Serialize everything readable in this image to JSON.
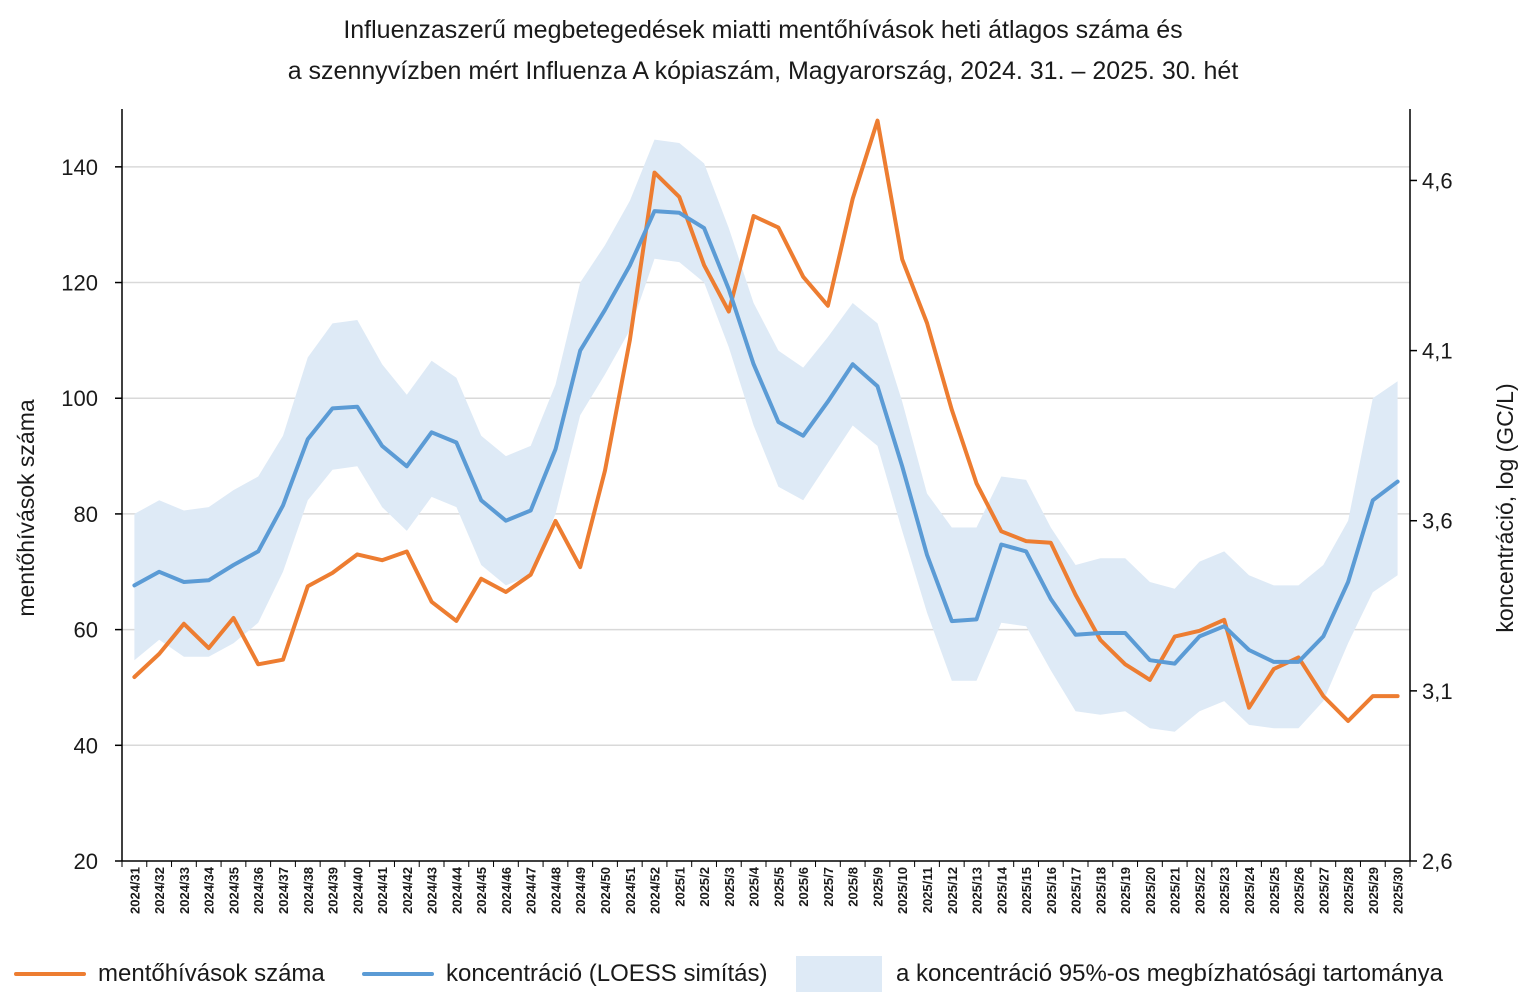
{
  "title": {
    "line1": "Influenzaszerű megbetegedések miatti mentőhívások heti átlagos száma és",
    "line2": "a szennyvízben mért Influenza A kópiaszám, Magyarország, 2024. 31. – 2025. 30. hét"
  },
  "legend": {
    "calls": "mentőhívások száma",
    "loess": "koncentráció (LOESS simítás)",
    "band": "a koncentráció 95%-os megbízhatósági tartománya"
  },
  "colors": {
    "calls": "#ED7D31",
    "loess": "#5B9BD5",
    "band": "#DEEAF6",
    "grid": "#D9D9D9",
    "axis": "#000000"
  },
  "chart_data": {
    "type": "line",
    "title": "Influenzaszerű megbetegedések miatti mentőhívások heti átlagos száma és a szennyvízben mért Influenza A kópiaszám, Magyarország, 2024. 31. – 2025. 30. hét",
    "ylabel": "mentőhívások száma",
    "y2label": "koncentráció, log (GC/L)",
    "ylim": [
      20,
      150
    ],
    "yticks": [
      20,
      40,
      60,
      80,
      100,
      120,
      140
    ],
    "y2lim": [
      2.6,
      4.81
    ],
    "y2ticks": [
      2.6,
      3.1,
      3.6,
      4.1,
      4.6
    ],
    "y2ticklabels": [
      "2,6",
      "3,1",
      "3,6",
      "4,1",
      "4,6"
    ],
    "grid": true,
    "legend_position": "bottom",
    "categories": [
      "2024/31",
      "2024/32",
      "2024/33",
      "2024/34",
      "2024/35",
      "2024/36",
      "2024/37",
      "2024/38",
      "2024/39",
      "2024/40",
      "2024/41",
      "2024/42",
      "2024/43",
      "2024/44",
      "2024/45",
      "2024/46",
      "2024/47",
      "2024/48",
      "2024/49",
      "2024/50",
      "2024/51",
      "2024/52",
      "2025/1",
      "2025/2",
      "2025/3",
      "2025/4",
      "2025/5",
      "2025/6",
      "2025/7",
      "2025/8",
      "2025/9",
      "2025/10",
      "2025/11",
      "2025/12",
      "2025/13",
      "2025/14",
      "2025/15",
      "2025/16",
      "2025/17",
      "2025/18",
      "2025/19",
      "2025/20",
      "2025/21",
      "2025/22",
      "2025/23",
      "2025/24",
      "2025/25",
      "2025/26",
      "2025/27",
      "2025/28",
      "2025/29",
      "2025/30"
    ],
    "series": [
      {
        "name": "mentőhívások száma",
        "axis": "left",
        "values": [
          51.8,
          55.8,
          61.0,
          56.8,
          62.0,
          54.0,
          54.8,
          67.5,
          69.8,
          73.0,
          72.0,
          73.5,
          64.8,
          61.5,
          68.8,
          66.5,
          69.5,
          78.8,
          70.8,
          87.5,
          110.0,
          139.0,
          134.8,
          123.0,
          115.0,
          131.5,
          129.5,
          121.0,
          116.0,
          134.5,
          148.0,
          124.0,
          113.0,
          98.0,
          85.3,
          77.0,
          75.3,
          75.0,
          66.0,
          58.2,
          54.0,
          51.3,
          58.8,
          59.8,
          61.7,
          46.5,
          53.2,
          55.2,
          48.5,
          44.2,
          48.5,
          48.5
        ]
      },
      {
        "name": "koncentráció (LOESS simítás)",
        "axis": "right",
        "values": [
          3.41,
          3.45,
          3.42,
          3.425,
          3.47,
          3.51,
          3.645,
          3.84,
          3.93,
          3.935,
          3.82,
          3.76,
          3.86,
          3.83,
          3.66,
          3.6,
          3.63,
          3.81,
          4.1,
          4.22,
          4.35,
          4.51,
          4.505,
          4.46,
          4.28,
          4.06,
          3.89,
          3.85,
          3.95,
          4.06,
          3.995,
          3.76,
          3.5,
          3.305,
          3.31,
          3.53,
          3.51,
          3.37,
          3.265,
          3.27,
          3.27,
          3.19,
          3.18,
          3.26,
          3.29,
          3.22,
          3.185,
          3.185,
          3.26,
          3.42,
          3.66,
          3.715
        ]
      },
      {
        "name": "a koncentráció 95%-os megbízhatósági tartománya",
        "axis": "right",
        "type": "band",
        "lower": [
          3.19,
          3.25,
          3.2,
          3.2,
          3.24,
          3.3,
          3.45,
          3.66,
          3.75,
          3.76,
          3.64,
          3.57,
          3.67,
          3.64,
          3.47,
          3.41,
          3.44,
          3.62,
          3.91,
          4.03,
          4.16,
          4.37,
          4.36,
          4.3,
          4.11,
          3.88,
          3.7,
          3.66,
          3.77,
          3.88,
          3.82,
          3.57,
          3.33,
          3.13,
          3.13,
          3.3,
          3.29,
          3.16,
          3.04,
          3.03,
          3.04,
          2.99,
          2.98,
          3.04,
          3.07,
          3.0,
          2.99,
          2.99,
          3.07,
          3.24,
          3.39,
          3.44
        ],
        "upper": [
          3.62,
          3.66,
          3.63,
          3.64,
          3.69,
          3.73,
          3.85,
          4.08,
          4.18,
          4.19,
          4.06,
          3.97,
          4.07,
          4.02,
          3.85,
          3.79,
          3.82,
          4.0,
          4.3,
          4.41,
          4.54,
          4.72,
          4.71,
          4.65,
          4.46,
          4.24,
          4.1,
          4.05,
          4.14,
          4.24,
          4.18,
          3.95,
          3.68,
          3.58,
          3.58,
          3.73,
          3.72,
          3.58,
          3.47,
          3.49,
          3.49,
          3.42,
          3.4,
          3.48,
          3.51,
          3.44,
          3.41,
          3.41,
          3.47,
          3.6,
          3.96,
          4.01
        ]
      }
    ]
  }
}
